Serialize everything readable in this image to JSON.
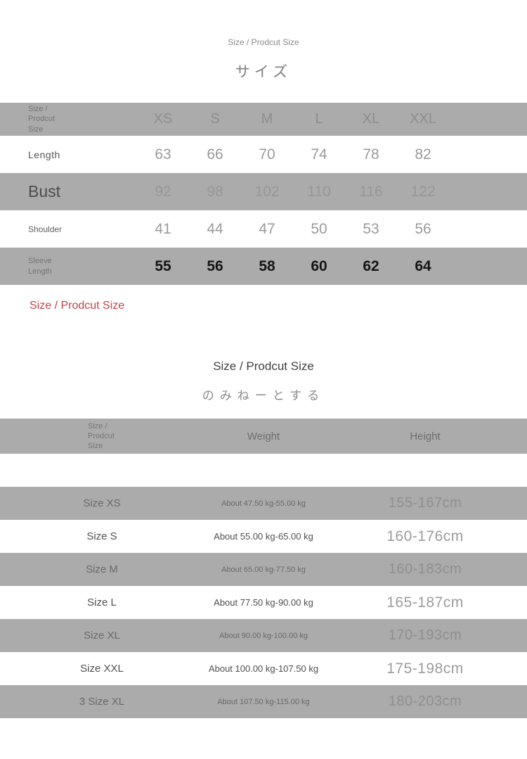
{
  "section1": {
    "subtitle": "Size / Prodcut Size",
    "title_jp": "サイズ",
    "table": {
      "corner_label_lines": [
        "Size /",
        "Prodcut",
        "Size"
      ],
      "columns": [
        "XS",
        "S",
        "M",
        "L",
        "XL",
        "XXL"
      ],
      "rows": [
        {
          "label": "Length",
          "values": [
            "63",
            "66",
            "70",
            "74",
            "78",
            "82"
          ]
        },
        {
          "label": "Bust",
          "values": [
            "92",
            "98",
            "102",
            "110",
            "116",
            "122"
          ]
        },
        {
          "label": "Shoulder",
          "values": [
            "41",
            "44",
            "47",
            "50",
            "53",
            "56"
          ]
        },
        {
          "label_lines": [
            "Sleeve",
            "Length"
          ],
          "values": [
            "55",
            "56",
            "58",
            "60",
            "62",
            "64"
          ]
        }
      ]
    },
    "red_note": "Size / Prodcut Size"
  },
  "section2": {
    "title": "Size / Prodcut Size",
    "subtitle_jp": "のみねーとする",
    "table": {
      "corner_label_lines": [
        "Size /",
        "Prodcut",
        "Size"
      ],
      "weight_header": "Weight",
      "height_header": "Height",
      "rows": [
        {
          "size": "Size XS",
          "weight": "About 47.50 kg-55.00 kg",
          "height": "155-167cm"
        },
        {
          "size": "Size S",
          "weight": "About 55.00 kg-65.00 kg",
          "height": "160-176cm"
        },
        {
          "size": "Size M",
          "weight": "About 65.00 kg-77.50 kg",
          "height": "160-183cm"
        },
        {
          "size": "Size L",
          "weight": "About 77.50 kg-90.00 kg",
          "height": "165-187cm"
        },
        {
          "size": "Size XL",
          "weight": "About 90.00 kg-100.00 kg",
          "height": "170-193cm"
        },
        {
          "size": "Size XXL",
          "weight": "About 100.00 kg-107.50 kg",
          "height": "175-198cm"
        },
        {
          "size": "3 Size XL",
          "weight": "About 107.50 kg-115.00 kg",
          "height": "180-203cm"
        }
      ]
    }
  },
  "colors": {
    "row_gray": "#ababab",
    "red_note": "#c64343"
  }
}
